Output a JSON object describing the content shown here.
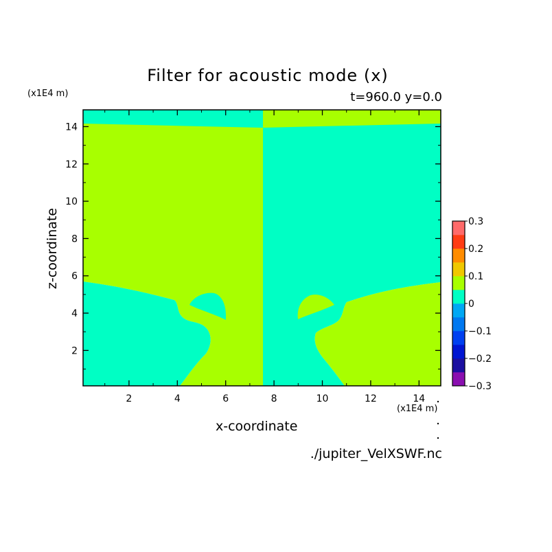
{
  "chart_data": {
    "type": "heatmap",
    "title": "Filter for acoustic mode (x)",
    "subtitle": "t=960.0 y=0.0",
    "xlabel": "x-coordinate",
    "ylabel": "z-coordinate",
    "x_multiplier": "(x1E4 m)",
    "y_multiplier": "(x1E4 m)",
    "xlim": [
      0.1,
      14.9
    ],
    "ylim": [
      0.1,
      14.9
    ],
    "x_ticks": [
      2,
      4,
      6,
      8,
      10,
      12,
      14
    ],
    "y_ticks": [
      2,
      4,
      6,
      8,
      10,
      12,
      14
    ],
    "source": "./jupiter_VelXSWF.nc",
    "colorbar": {
      "levels": [
        -0.3,
        -0.25,
        -0.2,
        -0.15,
        -0.1,
        -0.05,
        0,
        0.05,
        0.1,
        0.15,
        0.2,
        0.25,
        0.3
      ],
      "colors": [
        "#8a0fb0",
        "#1b0fa0",
        "#0015d2",
        "#0040f0",
        "#0078f0",
        "#00a8f4",
        "#00ffc4",
        "#a8ff00",
        "#f0c800",
        "#ff8c00",
        "#ff3c14",
        "#ff6a6a"
      ],
      "tick_labels": [
        "0.3",
        "0.2",
        "0.1",
        "0",
        "−0.1",
        "−0.2",
        "−0.3"
      ]
    },
    "regions": [
      {
        "value_range": [
          -0.05,
          0
        ],
        "color": "#00ffc4",
        "area": "upper-left band above z≈14.1, x<7.5"
      },
      {
        "value_range": [
          0,
          0.05
        ],
        "color": "#a8ff00",
        "area": "upper-right band above z≈14.1, x>7.5"
      },
      {
        "value_range": [
          0,
          0.05
        ],
        "color": "#a8ff00",
        "area": "left half x<7.5 above z≈5.6 and central lobe"
      },
      {
        "value_range": [
          -0.05,
          0
        ],
        "color": "#00ffc4",
        "area": "right half x>7.5 above z≈5.6 and central lobe"
      },
      {
        "value_range": [
          -0.05,
          0
        ],
        "color": "#00ffc4",
        "area": "lower-left region below z≈5.6"
      },
      {
        "value_range": [
          0,
          0.05
        ],
        "color": "#a8ff00",
        "area": "lower-right region below z≈5.6"
      }
    ]
  }
}
